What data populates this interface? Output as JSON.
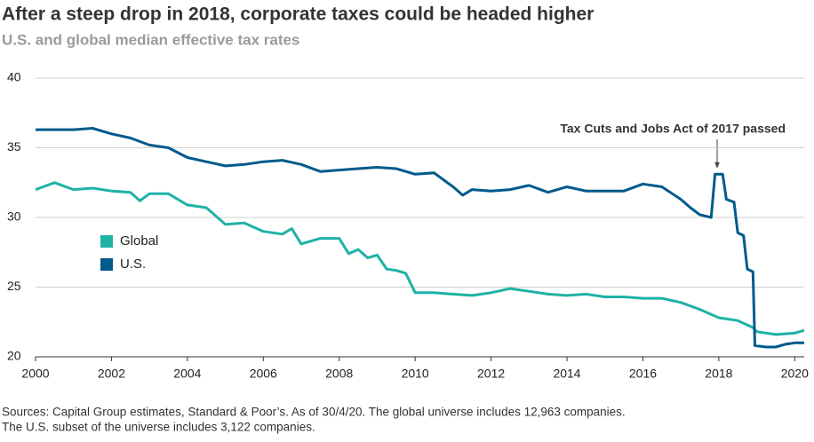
{
  "chart_data": {
    "type": "line",
    "title": "After a steep drop in 2018, corporate taxes could be headed higher",
    "subtitle": "U.S. and global median effective tax rates",
    "annotation": "Tax Cuts and Jobs Act of 2017 passed",
    "source": [
      "Sources: Capital Group estimates, Standard & Poor’s. As of 30/4/20. The global universe includes 12,963 companies.",
      "The U.S. subset of the universe includes 3,122 companies."
    ],
    "xlim": [
      2000,
      2020.25
    ],
    "xticks": [
      2000,
      2002,
      2004,
      2006,
      2008,
      2010,
      2012,
      2014,
      2016,
      2018,
      2020
    ],
    "ylim": [
      20,
      40
    ],
    "yticks": [
      20,
      25,
      30,
      35,
      40
    ],
    "grid": true,
    "series": [
      {
        "name": "Global",
        "color": "#1fb2a6",
        "x": [
          2000,
          2000.5,
          2001,
          2001.5,
          2002,
          2002.5,
          2002.75,
          2003,
          2003.5,
          2004,
          2004.5,
          2005,
          2005.5,
          2006,
          2006.5,
          2006.75,
          2007,
          2007.5,
          2008,
          2008.25,
          2008.5,
          2008.75,
          2009,
          2009.25,
          2009.5,
          2009.75,
          2010,
          2010.5,
          2011,
          2011.5,
          2012,
          2012.5,
          2013,
          2013.5,
          2014,
          2014.5,
          2015,
          2015.5,
          2016,
          2016.5,
          2017,
          2017.5,
          2018,
          2018.5,
          2018.9,
          2019,
          2019.5,
          2020,
          2020.25
        ],
        "values": [
          32.0,
          32.5,
          32.0,
          32.1,
          31.9,
          31.8,
          31.2,
          31.7,
          31.7,
          30.9,
          30.7,
          29.5,
          29.6,
          29.0,
          28.8,
          29.2,
          28.1,
          28.5,
          28.5,
          27.4,
          27.7,
          27.1,
          27.3,
          26.3,
          26.2,
          26.0,
          24.6,
          24.6,
          24.5,
          24.4,
          24.6,
          24.9,
          24.7,
          24.5,
          24.4,
          24.5,
          24.3,
          24.3,
          24.2,
          24.2,
          23.9,
          23.4,
          22.8,
          22.6,
          22.1,
          21.8,
          21.6,
          21.7,
          21.9
        ]
      },
      {
        "name": "U.S.",
        "color": "#005a8c",
        "x": [
          2000,
          2001,
          2001.5,
          2002,
          2002.5,
          2003,
          2003.5,
          2004,
          2004.5,
          2005,
          2005.5,
          2006,
          2006.5,
          2007,
          2007.5,
          2008,
          2008.5,
          2009,
          2009.5,
          2010,
          2010.5,
          2011,
          2011.25,
          2011.5,
          2012,
          2012.5,
          2013,
          2013.5,
          2014,
          2014.5,
          2015,
          2015.5,
          2016,
          2016.5,
          2017,
          2017.25,
          2017.5,
          2017.8,
          2017.9,
          2018.1,
          2018.2,
          2018.4,
          2018.5,
          2018.65,
          2018.75,
          2018.9,
          2018.95,
          2019.25,
          2019.5,
          2019.75,
          2020,
          2020.25
        ],
        "values": [
          36.3,
          36.3,
          36.4,
          36.0,
          35.7,
          35.2,
          35.0,
          34.3,
          34.0,
          33.7,
          33.8,
          34.0,
          34.1,
          33.8,
          33.3,
          33.4,
          33.5,
          33.6,
          33.5,
          33.1,
          33.2,
          32.2,
          31.6,
          32.0,
          31.9,
          32.0,
          32.3,
          31.8,
          32.2,
          31.9,
          31.9,
          31.9,
          32.4,
          32.2,
          31.3,
          30.7,
          30.2,
          30.0,
          33.1,
          33.1,
          31.3,
          31.1,
          28.9,
          28.7,
          26.3,
          26.1,
          20.8,
          20.7,
          20.7,
          20.9,
          21.0,
          21.0
        ]
      }
    ]
  }
}
